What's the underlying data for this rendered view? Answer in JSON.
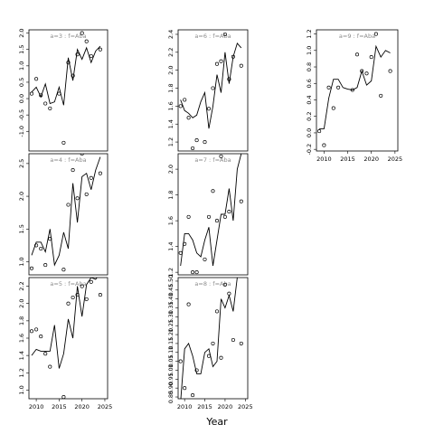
{
  "xlabel": "Year",
  "chart_data": [
    {
      "type": "line",
      "title": "a=3 : f=Aba",
      "ylim": [
        -1.6,
        2.1
      ],
      "yticks": [
        -1.0,
        -0.5,
        0.0,
        0.5,
        1.0,
        1.5,
        2.0
      ],
      "xticks": [],
      "x_years": [
        2009,
        2010,
        2011,
        2012,
        2013,
        2014,
        2015,
        2016,
        2017,
        2018,
        2019,
        2020,
        2021,
        2022,
        2023,
        2024
      ],
      "line_values": [
        0.2,
        0.35,
        0.05,
        0.45,
        -0.15,
        -0.1,
        0.35,
        -0.2,
        1.25,
        0.55,
        1.5,
        1.2,
        1.55,
        1.1,
        1.45,
        1.6
      ],
      "points": [
        [
          2009,
          0.15
        ],
        [
          2010,
          0.6
        ],
        [
          2011,
          0.1
        ],
        [
          2012,
          -0.15
        ],
        [
          2013,
          -0.3
        ],
        [
          2015,
          0.15
        ],
        [
          2016,
          -1.35
        ],
        [
          2017,
          1.1
        ],
        [
          2018,
          0.7
        ],
        [
          2019,
          1.35
        ],
        [
          2020,
          2.0
        ],
        [
          2021,
          1.75
        ],
        [
          2022,
          1.3
        ],
        [
          2024,
          1.5
        ]
      ]
    },
    {
      "type": "line",
      "title": "a=4 : f=Aba",
      "ylim": [
        0.8,
        2.65
      ],
      "yticks": [
        1.0,
        1.5,
        2.0,
        2.5
      ],
      "xticks": [],
      "x_years": [
        2009,
        2010,
        2011,
        2012,
        2013,
        2014,
        2015,
        2016,
        2017,
        2018,
        2019,
        2020,
        2021,
        2022,
        2023,
        2024
      ],
      "line_values": [
        1.1,
        1.3,
        1.3,
        1.15,
        1.5,
        0.95,
        1.1,
        1.45,
        1.2,
        2.2,
        1.6,
        2.3,
        2.35,
        2.1,
        2.4,
        2.6
      ],
      "points": [
        [
          2009,
          0.9
        ],
        [
          2010,
          1.25
        ],
        [
          2011,
          1.2
        ],
        [
          2012,
          0.95
        ],
        [
          2013,
          1.35
        ],
        [
          2016,
          0.88
        ],
        [
          2017,
          1.87
        ],
        [
          2018,
          2.4
        ],
        [
          2019,
          1.97
        ],
        [
          2020,
          2.65
        ],
        [
          2021,
          2.03
        ],
        [
          2022,
          2.28
        ],
        [
          2024,
          2.35
        ]
      ]
    },
    {
      "type": "line",
      "title": "a=5 : f=Aba",
      "ylim": [
        0.9,
        2.3
      ],
      "yticks": [
        1.0,
        1.2,
        1.4,
        1.6,
        1.8,
        2.0,
        2.2
      ],
      "xticks": [
        2010,
        2015,
        2020,
        2025
      ],
      "x_years": [
        2009,
        2010,
        2011,
        2012,
        2013,
        2014,
        2015,
        2016,
        2017,
        2018,
        2019,
        2020,
        2021,
        2022,
        2023,
        2024
      ],
      "line_values": [
        1.4,
        1.47,
        1.45,
        1.45,
        1.45,
        1.75,
        1.25,
        1.42,
        1.82,
        1.6,
        2.2,
        1.85,
        2.22,
        2.3,
        2.28,
        2.35
      ],
      "points": [
        [
          2009,
          1.68
        ],
        [
          2010,
          1.7
        ],
        [
          2011,
          1.62
        ],
        [
          2012,
          1.42
        ],
        [
          2013,
          1.27
        ],
        [
          2016,
          0.92
        ],
        [
          2017,
          2.0
        ],
        [
          2018,
          2.07
        ],
        [
          2019,
          2.1
        ],
        [
          2020,
          2.2
        ],
        [
          2021,
          2.05
        ],
        [
          2022,
          2.25
        ],
        [
          2024,
          2.1
        ]
      ]
    },
    {
      "type": "line",
      "title": "a=6 : f=Aba",
      "ylim": [
        1.1,
        2.45
      ],
      "yticks": [
        1.2,
        1.4,
        1.6,
        1.8,
        2.0,
        2.2,
        2.4
      ],
      "xticks": [],
      "x_years": [
        2009,
        2010,
        2011,
        2012,
        2013,
        2014,
        2015,
        2016,
        2017,
        2018,
        2019,
        2020,
        2021,
        2022,
        2023,
        2024
      ],
      "line_values": [
        1.67,
        1.55,
        1.52,
        1.47,
        1.5,
        1.65,
        1.75,
        1.35,
        1.6,
        1.95,
        1.75,
        2.2,
        1.85,
        2.15,
        2.3,
        2.25
      ],
      "points": [
        [
          2009,
          1.6
        ],
        [
          2010,
          1.67
        ],
        [
          2011,
          1.47
        ],
        [
          2012,
          1.13
        ],
        [
          2013,
          1.22
        ],
        [
          2015,
          1.2
        ],
        [
          2016,
          1.57
        ],
        [
          2017,
          1.8
        ],
        [
          2018,
          2.07
        ],
        [
          2019,
          2.1
        ],
        [
          2020,
          2.4
        ],
        [
          2021,
          1.9
        ],
        [
          2022,
          2.15
        ],
        [
          2024,
          2.05
        ]
      ]
    },
    {
      "type": "line",
      "title": "a=7 : f=Aba",
      "ylim": [
        1.18,
        2.12
      ],
      "yticks": [
        1.2,
        1.4,
        1.6,
        1.8,
        2.0
      ],
      "xticks": [],
      "x_years": [
        2009,
        2010,
        2011,
        2012,
        2013,
        2014,
        2015,
        2016,
        2017,
        2018,
        2019,
        2020,
        2021,
        2022,
        2023,
        2024
      ],
      "line_values": [
        1.25,
        1.5,
        1.5,
        1.45,
        1.35,
        1.32,
        1.45,
        1.55,
        1.25,
        1.45,
        1.65,
        1.65,
        1.85,
        1.6,
        2.0,
        2.12
      ],
      "points": [
        [
          2009,
          1.35
        ],
        [
          2010,
          1.42
        ],
        [
          2011,
          1.63
        ],
        [
          2012,
          1.2
        ],
        [
          2013,
          1.2
        ],
        [
          2015,
          1.3
        ],
        [
          2016,
          1.63
        ],
        [
          2017,
          1.83
        ],
        [
          2018,
          1.6
        ],
        [
          2019,
          2.1
        ],
        [
          2020,
          1.63
        ],
        [
          2021,
          1.67
        ],
        [
          2024,
          1.75
        ]
      ]
    },
    {
      "type": "line",
      "title": "a=8 : f=Aba",
      "ylim": [
        0.84,
        1.52
      ],
      "yticks": [
        0.85,
        0.9,
        0.95,
        1.0,
        1.05,
        1.1,
        1.15,
        1.2,
        1.25,
        1.3,
        1.35,
        1.4,
        1.45,
        1.5
      ],
      "xticks": [
        2010,
        2015,
        2020,
        2025
      ],
      "x_years": [
        2009,
        2010,
        2011,
        2012,
        2013,
        2014,
        2015,
        2016,
        2017,
        2018,
        2019,
        2020,
        2021,
        2022,
        2023,
        2024
      ],
      "line_values": [
        0.82,
        1.12,
        1.15,
        1.08,
        0.98,
        0.98,
        1.1,
        1.12,
        1.02,
        1.05,
        1.4,
        1.35,
        1.42,
        1.33,
        1.52,
        1.55
      ],
      "points": [
        [
          2009,
          1.05
        ],
        [
          2010,
          0.9
        ],
        [
          2011,
          1.37
        ],
        [
          2012,
          0.86
        ],
        [
          2013,
          1.0
        ],
        [
          2016,
          1.08
        ],
        [
          2017,
          1.15
        ],
        [
          2018,
          1.33
        ],
        [
          2019,
          1.07
        ],
        [
          2020,
          1.48
        ],
        [
          2021,
          1.43
        ],
        [
          2022,
          1.17
        ],
        [
          2024,
          1.15
        ]
      ]
    },
    {
      "type": "line",
      "title": "a=9 : f=Aba",
      "ylim": [
        -0.22,
        1.25
      ],
      "yticks": [
        -0.2,
        0.0,
        0.2,
        0.4,
        0.6,
        0.8,
        1.0,
        1.2
      ],
      "xticks": [
        2010,
        2015,
        2020,
        2025
      ],
      "x_years": [
        2009,
        2010,
        2011,
        2012,
        2013,
        2014,
        2015,
        2016,
        2017,
        2018,
        2019,
        2020,
        2021,
        2022,
        2023,
        2024
      ],
      "line_values": [
        0.05,
        0.05,
        0.42,
        0.65,
        0.65,
        0.55,
        0.53,
        0.52,
        0.55,
        0.75,
        0.58,
        0.63,
        1.05,
        0.92,
        1.0,
        0.97
      ],
      "points": [
        [
          2009,
          0.02
        ],
        [
          2010,
          -0.15
        ],
        [
          2011,
          0.55
        ],
        [
          2012,
          0.3
        ],
        [
          2013,
          0.55
        ],
        [
          2016,
          0.52
        ],
        [
          2017,
          0.95
        ],
        [
          2018,
          0.75
        ],
        [
          2019,
          0.72
        ],
        [
          2020,
          0.92
        ],
        [
          2021,
          1.2
        ],
        [
          2022,
          0.45
        ],
        [
          2024,
          0.75
        ]
      ]
    }
  ]
}
